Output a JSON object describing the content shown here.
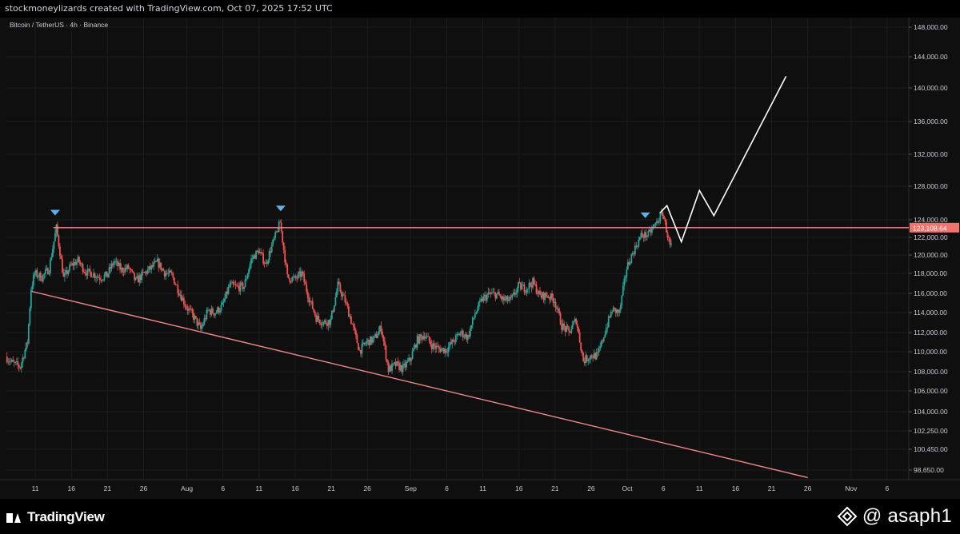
{
  "header": {
    "attribution": "stockmoneylizards created with TradingView.com, Oct 07, 2025 17:52 UTC"
  },
  "footer": {
    "brand": "TradingView",
    "credit": "@ asaph1"
  },
  "chart_data": {
    "type": "candlestick",
    "symbol_label": "Bitcoin / TetherUS · 4h · Binance",
    "ylim": [
      97000,
      149500
    ],
    "y_ticks": [
      98650,
      100450,
      102250,
      104000,
      106000,
      108000,
      110000,
      112000,
      114000,
      116000,
      118000,
      120000,
      122000,
      124000,
      128000,
      132000,
      136000,
      140000,
      144000,
      148000
    ],
    "x_range": [
      "2025-07-07",
      "2025-11-09"
    ],
    "x_ticks": [
      {
        "date": "2025-07-11",
        "label": "11"
      },
      {
        "date": "2025-07-16",
        "label": "16"
      },
      {
        "date": "2025-07-21",
        "label": "21"
      },
      {
        "date": "2025-07-26",
        "label": "26"
      },
      {
        "date": "2025-08-01",
        "label": "Aug"
      },
      {
        "date": "2025-08-06",
        "label": "6"
      },
      {
        "date": "2025-08-11",
        "label": "11"
      },
      {
        "date": "2025-08-16",
        "label": "16"
      },
      {
        "date": "2025-08-21",
        "label": "21"
      },
      {
        "date": "2025-08-26",
        "label": "26"
      },
      {
        "date": "2025-09-01",
        "label": "Sep"
      },
      {
        "date": "2025-09-06",
        "label": "6"
      },
      {
        "date": "2025-09-11",
        "label": "11"
      },
      {
        "date": "2025-09-16",
        "label": "16"
      },
      {
        "date": "2025-09-21",
        "label": "21"
      },
      {
        "date": "2025-09-26",
        "label": "26"
      },
      {
        "date": "2025-10-01",
        "label": "Oct"
      },
      {
        "date": "2025-10-06",
        "label": "6"
      },
      {
        "date": "2025-10-11",
        "label": "11"
      },
      {
        "date": "2025-10-16",
        "label": "16"
      },
      {
        "date": "2025-10-21",
        "label": "21"
      },
      {
        "date": "2025-10-26",
        "label": "26"
      },
      {
        "date": "2025-11-01",
        "label": "Nov"
      },
      {
        "date": "2025-11-06",
        "label": "6"
      }
    ],
    "price_path": [
      [
        "2025-07-07",
        109500
      ],
      [
        "2025-07-08",
        108800
      ],
      [
        "2025-07-09",
        108500
      ],
      [
        "2025-07-10",
        111000
      ],
      [
        "2025-07-10 12:00",
        116500
      ],
      [
        "2025-07-11",
        118000
      ],
      [
        "2025-07-12",
        117600
      ],
      [
        "2025-07-13",
        118500
      ],
      [
        "2025-07-14",
        123100
      ],
      [
        "2025-07-15",
        117500
      ],
      [
        "2025-07-16",
        118800
      ],
      [
        "2025-07-17",
        119400
      ],
      [
        "2025-07-18",
        118200
      ],
      [
        "2025-07-19",
        118000
      ],
      [
        "2025-07-20",
        117600
      ],
      [
        "2025-07-21",
        117800
      ],
      [
        "2025-07-22",
        119300
      ],
      [
        "2025-07-23",
        118400
      ],
      [
        "2025-07-24",
        118600
      ],
      [
        "2025-07-25",
        117200
      ],
      [
        "2025-07-26",
        117900
      ],
      [
        "2025-07-27",
        118500
      ],
      [
        "2025-07-28",
        119200
      ],
      [
        "2025-07-29",
        118100
      ],
      [
        "2025-07-30",
        117800
      ],
      [
        "2025-07-31",
        116200
      ],
      [
        "2025-08-01",
        114600
      ],
      [
        "2025-08-02",
        113600
      ],
      [
        "2025-08-03",
        112300
      ],
      [
        "2025-08-04",
        114200
      ],
      [
        "2025-08-05",
        114000
      ],
      [
        "2025-08-06",
        114700
      ],
      [
        "2025-08-07",
        116800
      ],
      [
        "2025-08-08",
        116600
      ],
      [
        "2025-08-09",
        116700
      ],
      [
        "2025-08-10",
        119500
      ],
      [
        "2025-08-11",
        120500
      ],
      [
        "2025-08-12",
        119000
      ],
      [
        "2025-08-13",
        121400
      ],
      [
        "2025-08-14",
        123700
      ],
      [
        "2025-08-15",
        117600
      ],
      [
        "2025-08-16",
        117400
      ],
      [
        "2025-08-17",
        118000
      ],
      [
        "2025-08-18",
        115500
      ],
      [
        "2025-08-19",
        113500
      ],
      [
        "2025-08-20",
        113000
      ],
      [
        "2025-08-21",
        113200
      ],
      [
        "2025-08-22",
        116800
      ],
      [
        "2025-08-23",
        115200
      ],
      [
        "2025-08-24",
        112800
      ],
      [
        "2025-08-25",
        110100
      ],
      [
        "2025-08-26",
        111000
      ],
      [
        "2025-08-27",
        111300
      ],
      [
        "2025-08-28",
        112500
      ],
      [
        "2025-08-29",
        108200
      ],
      [
        "2025-08-30",
        108700
      ],
      [
        "2025-08-31",
        108300
      ],
      [
        "2025-09-01",
        109200
      ],
      [
        "2025-09-02",
        111200
      ],
      [
        "2025-09-03",
        111800
      ],
      [
        "2025-09-04",
        110700
      ],
      [
        "2025-09-05",
        110300
      ],
      [
        "2025-09-06",
        110200
      ],
      [
        "2025-09-07",
        111100
      ],
      [
        "2025-09-08",
        112000
      ],
      [
        "2025-09-09",
        111500
      ],
      [
        "2025-09-10",
        113900
      ],
      [
        "2025-09-11",
        115400
      ],
      [
        "2025-09-12",
        115900
      ],
      [
        "2025-09-13",
        115900
      ],
      [
        "2025-09-14",
        115300
      ],
      [
        "2025-09-15",
        115300
      ],
      [
        "2025-09-16",
        116700
      ],
      [
        "2025-09-17",
        116500
      ],
      [
        "2025-09-18",
        117100
      ],
      [
        "2025-09-19",
        115700
      ],
      [
        "2025-09-20",
        115800
      ],
      [
        "2025-09-21",
        115300
      ],
      [
        "2025-09-22",
        112700
      ],
      [
        "2025-09-23",
        112000
      ],
      [
        "2025-09-24",
        113300
      ],
      [
        "2025-09-25",
        109100
      ],
      [
        "2025-09-26",
        109600
      ],
      [
        "2025-09-27",
        109600
      ],
      [
        "2025-09-28",
        112100
      ],
      [
        "2025-09-29",
        114300
      ],
      [
        "2025-09-30",
        114000
      ],
      [
        "2025-10-01",
        118600
      ],
      [
        "2025-10-02",
        120500
      ],
      [
        "2025-10-03",
        122200
      ],
      [
        "2025-10-04",
        122300
      ],
      [
        "2025-10-05",
        123500
      ],
      [
        "2025-10-06",
        124800
      ],
      [
        "2025-10-07",
        121000
      ]
    ],
    "markers": [
      {
        "date": "2025-07-13 18:00",
        "price": 124900,
        "type": "triangle-down"
      },
      {
        "date": "2025-08-14",
        "price": 125400,
        "type": "triangle-down"
      },
      {
        "date": "2025-10-03 12:00",
        "price": 124600,
        "type": "triangle-down"
      }
    ],
    "resistance_line": {
      "price": 123108.64,
      "start": "2025-07-13 12:00",
      "label": "123,108.64"
    },
    "support_line": {
      "start": [
        "2025-07-10 12:00",
        116200
      ],
      "end": [
        "2025-10-26",
        98000
      ]
    },
    "projection_path": [
      [
        "2025-10-05 12:00",
        124800
      ],
      [
        "2025-10-06 12:00",
        125700
      ],
      [
        "2025-10-08 12:00",
        121500
      ],
      [
        "2025-10-11",
        127500
      ],
      [
        "2025-10-13",
        124500
      ],
      [
        "2025-10-23",
        141500
      ]
    ],
    "colors": {
      "up": "#26a69a",
      "down": "#ef5350",
      "level": "#f28b8b",
      "projection": "#ffffff",
      "marker": "#5cb3e8",
      "label_bg": "#f0736d"
    }
  }
}
